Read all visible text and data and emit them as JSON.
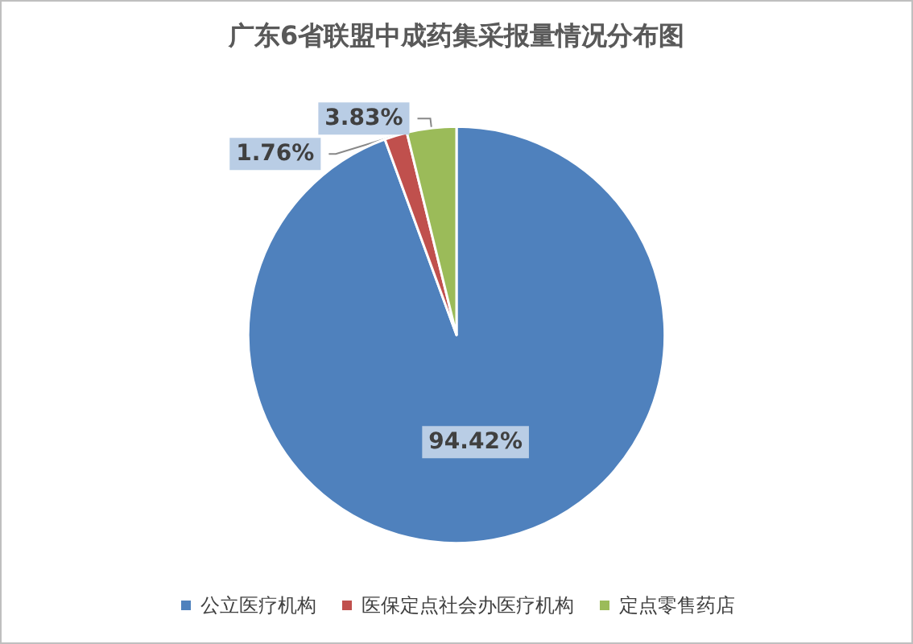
{
  "chart_data": {
    "type": "pie",
    "title": "广东6省联盟中成药集采报量情况分布图",
    "categories": [
      "公立医疗机构",
      "医保定点社会办医疗机构",
      "定点零售药店"
    ],
    "values": [
      94.42,
      1.76,
      3.83
    ],
    "value_labels": [
      "94.42%",
      "1.76%",
      "3.83%"
    ],
    "colors": [
      "#4f81bd",
      "#c0504d",
      "#9bbb59"
    ],
    "legend": "bottom"
  }
}
